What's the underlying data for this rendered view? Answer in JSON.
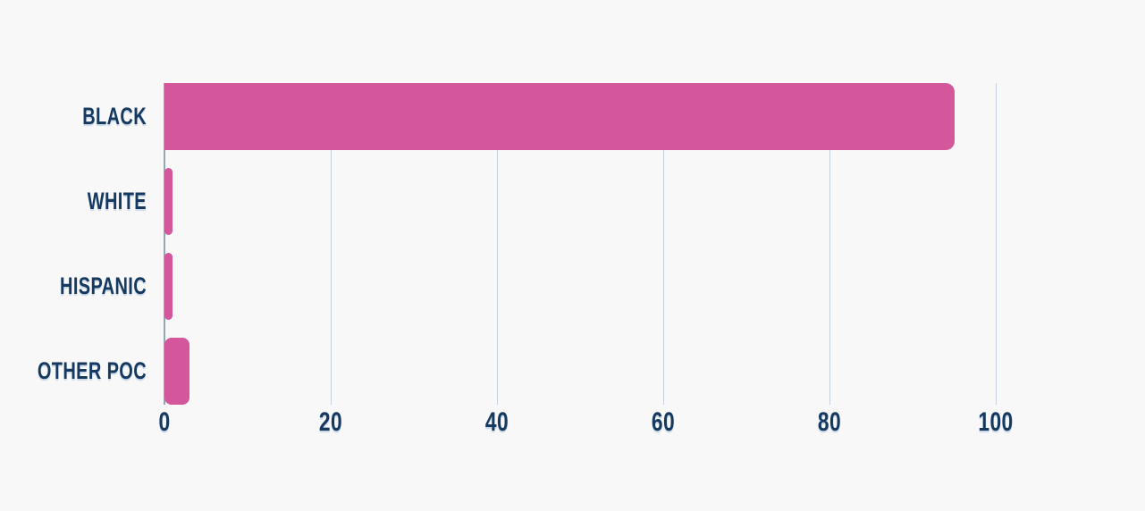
{
  "chart_data": {
    "type": "bar",
    "orientation": "horizontal",
    "title": "",
    "xlabel": "",
    "ylabel": "",
    "categories": [
      "BLACK",
      "WHITE",
      "HISPANIC",
      "OTHER POC"
    ],
    "values": [
      95,
      1,
      1,
      3
    ],
    "xlim": [
      0,
      100
    ],
    "xticks": [
      0,
      20,
      40,
      60,
      80,
      100
    ],
    "grid": "vertical-gridlines-on",
    "legend": "none",
    "colors": {
      "bar": "#d4579c",
      "category_label": "#16395f",
      "tick_label": "#16395f",
      "gridline": "#c5d0de",
      "zero_axis_line": "#90a7ba",
      "background": "#f8f8f8"
    }
  }
}
